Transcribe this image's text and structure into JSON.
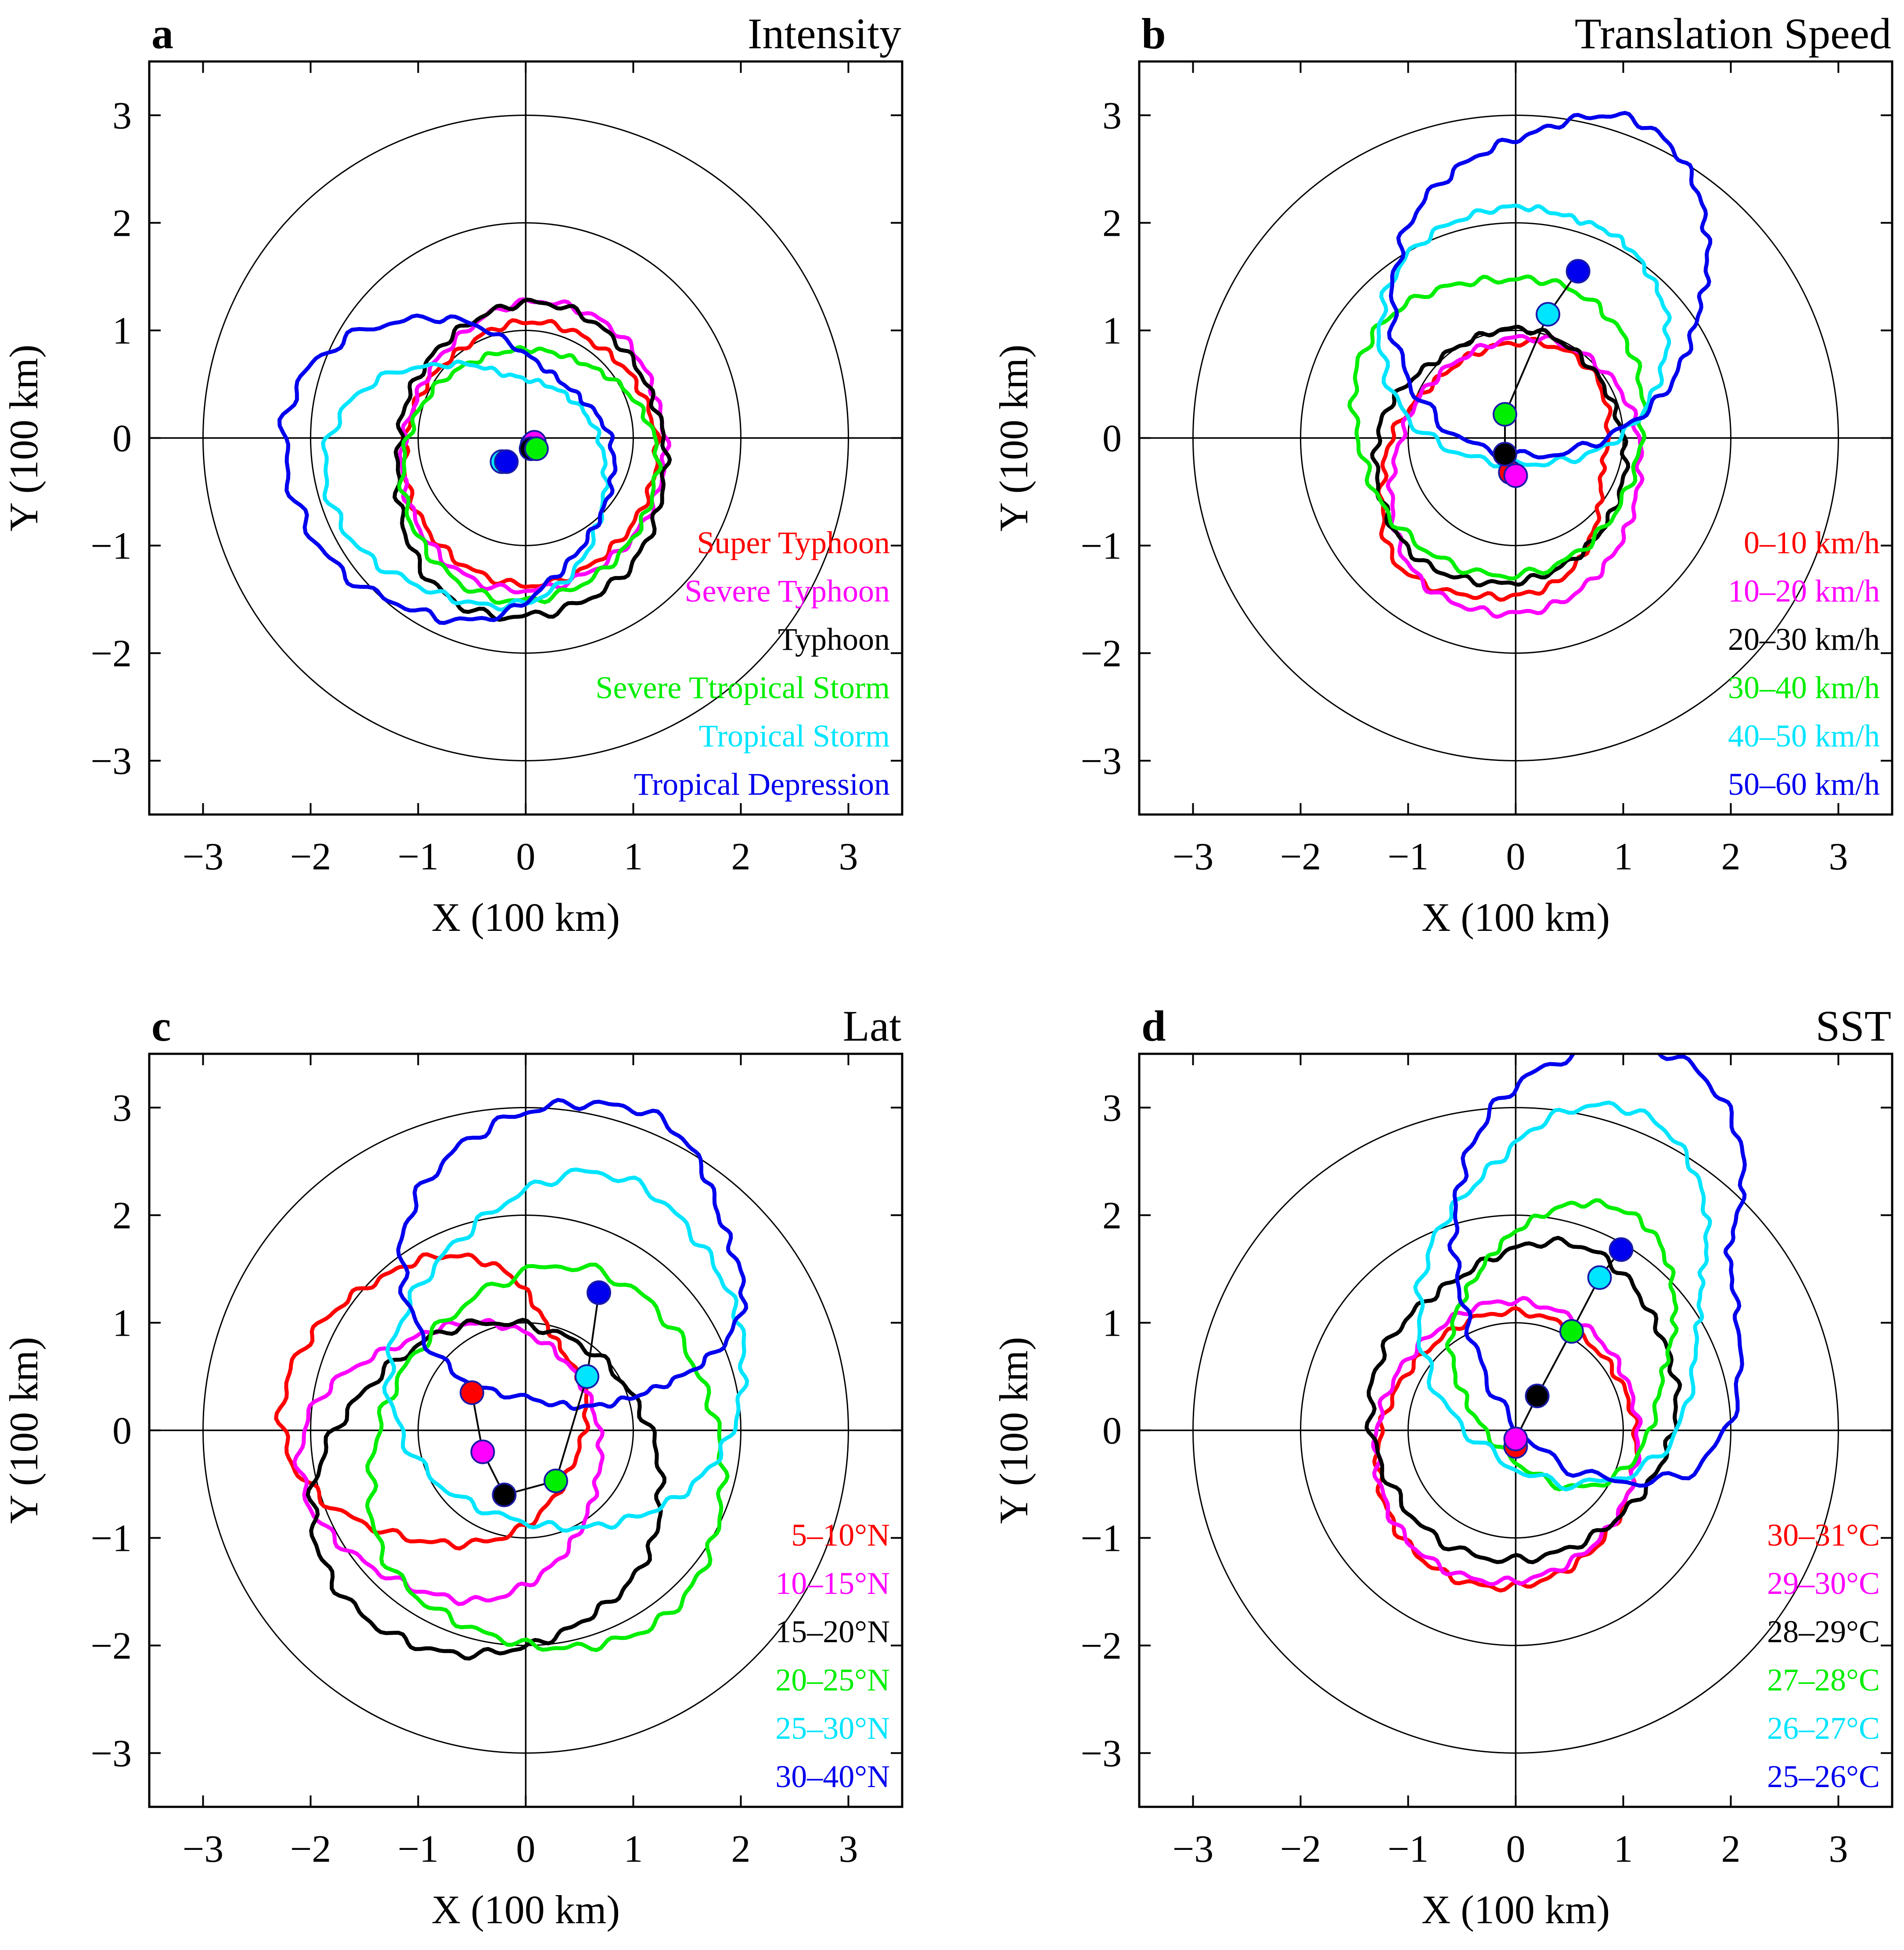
{
  "figure": {
    "x_label": "X (100 km)",
    "y_label": "Y (100 km)"
  },
  "chart_data": [
    {
      "type": "line",
      "letter": "a",
      "title": "Intensity",
      "xlim": [
        -3.5,
        3.5
      ],
      "ylim": [
        -3.5,
        3.5
      ],
      "xticks": [
        -3,
        -2,
        -1,
        0,
        1,
        2,
        3
      ],
      "yticks": [
        -3,
        -2,
        -1,
        0,
        1,
        2,
        3
      ],
      "tick_labels": [
        "−3",
        "−2",
        "−1",
        "0",
        "1",
        "2",
        "3"
      ],
      "range_circles": [
        1,
        2,
        3
      ],
      "xlabel": "X (100 km)",
      "ylabel": "Y (100 km)",
      "legend_position": "bottom-right",
      "series": [
        {
          "name": "Super Typhoon",
          "color": "#ff0000",
          "centroid": [
            0.06,
            -0.06
          ],
          "radii": [
            1.16,
            1.13,
            1.12,
            1.1,
            1.12,
            1.14,
            1.13,
            1.1,
            1.12,
            1.15,
            1.18,
            1.22,
            1.25,
            1.28,
            1.3,
            1.31,
            1.27,
            1.22,
            1.19,
            1.17
          ]
        },
        {
          "name": "Severe Typhoon",
          "color": "#ff00ff",
          "centroid": [
            0.08,
            -0.04
          ],
          "radii": [
            1.22,
            1.2,
            1.24,
            1.28,
            1.3,
            1.31,
            1.27,
            1.2,
            1.18,
            1.17,
            1.22,
            1.27,
            1.33,
            1.38,
            1.4,
            1.37,
            1.32,
            1.29,
            1.26,
            1.23
          ]
        },
        {
          "name": "Typhoon",
          "color": "#000000",
          "centroid": [
            0.05,
            -0.1
          ],
          "radii": [
            1.25,
            1.22,
            1.24,
            1.28,
            1.34,
            1.36,
            1.32,
            1.28,
            1.25,
            1.24,
            1.23,
            1.3,
            1.42,
            1.55,
            1.6,
            1.55,
            1.5,
            1.45,
            1.36,
            1.28
          ]
        },
        {
          "name": "Severe Ttropical Storm",
          "color": "#00ee00",
          "centroid": [
            0.1,
            -0.1
          ],
          "radii": [
            1.12,
            1.05,
            0.98,
            0.92,
            0.9,
            0.92,
            0.95,
            1.0,
            1.08,
            1.15,
            1.22,
            1.3,
            1.37,
            1.42,
            1.45,
            1.4,
            1.33,
            1.26,
            1.2,
            1.15
          ]
        },
        {
          "name": "Tropical Storm",
          "color": "#00e5ff",
          "centroid": [
            -0.22,
            -0.22
          ],
          "radii": [
            0.95,
            0.92,
            0.88,
            0.84,
            0.8,
            0.82,
            0.95,
            1.1,
            1.35,
            1.55,
            1.65,
            1.62,
            1.52,
            1.4,
            1.35,
            1.34,
            1.3,
            1.2,
            1.08,
            1.0
          ]
        },
        {
          "name": "Tropical Depression",
          "color": "#0000ee",
          "centroid": [
            -0.18,
            -0.22
          ],
          "radii": [
            1.0,
            0.98,
            0.92,
            0.9,
            0.96,
            1.12,
            1.38,
            1.62,
            1.9,
            2.08,
            2.05,
            1.95,
            1.82,
            1.65,
            1.55,
            1.4,
            1.2,
            1.08,
            1.02,
            1.0
          ]
        }
      ],
      "connector": false
    },
    {
      "type": "line",
      "letter": "b",
      "title": "Translation Speed",
      "xlim": [
        -3.5,
        3.5
      ],
      "ylim": [
        -3.5,
        3.5
      ],
      "xticks": [
        -3,
        -2,
        -1,
        0,
        1,
        2,
        3
      ],
      "yticks": [
        -3,
        -2,
        -1,
        0,
        1,
        2,
        3
      ],
      "tick_labels": [
        "−3",
        "−2",
        "−1",
        "0",
        "1",
        "2",
        "3"
      ],
      "range_circles": [
        1,
        2,
        3
      ],
      "xlabel": "X (100 km)",
      "ylabel": "Y (100 km)",
      "legend_position": "bottom-right",
      "series": [
        {
          "name": "0–10 km/h",
          "color": "#ff0000",
          "centroid": [
            -0.05,
            -0.32
          ],
          "radii": [
            0.85,
            0.95,
            1.1,
            1.22,
            1.24,
            1.2,
            1.15,
            1.1,
            1.1,
            1.15,
            1.18,
            1.25,
            1.35,
            1.3,
            1.2,
            1.15,
            1.12,
            1.05,
            0.95,
            0.88
          ]
        },
        {
          "name": "10–20 km/h",
          "color": "#ff00ff",
          "centroid": [
            0.0,
            -0.35
          ],
          "radii": [
            1.15,
            1.2,
            1.25,
            1.28,
            1.3,
            1.28,
            1.22,
            1.18,
            1.15,
            1.12,
            1.15,
            1.2,
            1.28,
            1.32,
            1.3,
            1.28,
            1.25,
            1.2,
            1.16,
            1.14
          ]
        },
        {
          "name": "20–30 km/h",
          "color": "#000000",
          "centroid": [
            -0.1,
            -0.15
          ],
          "radii": [
            1.12,
            1.1,
            1.12,
            1.15,
            1.18,
            1.16,
            1.1,
            1.08,
            1.12,
            1.18,
            1.2,
            1.22,
            1.25,
            1.26,
            1.22,
            1.2,
            1.18,
            1.16,
            1.14,
            1.13
          ]
        },
        {
          "name": "30–40 km/h",
          "color": "#00ee00",
          "centroid": [
            -0.1,
            0.22
          ],
          "radii": [
            1.28,
            1.3,
            1.32,
            1.32,
            1.3,
            1.25,
            1.28,
            1.35,
            1.42,
            1.44,
            1.4,
            1.38,
            1.42,
            1.45,
            1.48,
            1.5,
            1.48,
            1.42,
            1.35,
            1.3
          ]
        },
        {
          "name": "40–50 km/h",
          "color": "#00e5ff",
          "centroid": [
            0.3,
            1.15
          ],
          "radii": [
            1.1,
            1.02,
            0.98,
            0.95,
            0.92,
            0.96,
            1.05,
            1.15,
            1.3,
            1.45,
            1.55,
            1.6,
            1.62,
            1.55,
            1.45,
            1.38,
            1.35,
            1.3,
            1.22,
            1.15
          ]
        },
        {
          "name": "50–60 km/h",
          "color": "#0000ee",
          "centroid": [
            0.58,
            1.55
          ],
          "radii": [
            1.2,
            1.25,
            1.35,
            1.45,
            1.5,
            1.42,
            1.35,
            1.4,
            1.5,
            1.62,
            1.7,
            1.8,
            1.88,
            1.9,
            1.8,
            1.65,
            1.5,
            1.38,
            1.25,
            1.18
          ]
        }
      ],
      "connector": true
    },
    {
      "type": "line",
      "letter": "c",
      "title": "Lat",
      "xlim": [
        -3.5,
        3.5
      ],
      "ylim": [
        -3.5,
        3.5
      ],
      "xticks": [
        -3,
        -2,
        -1,
        0,
        1,
        2,
        3
      ],
      "yticks": [
        -3,
        -2,
        -1,
        0,
        1,
        2,
        3
      ],
      "tick_labels": [
        "−3",
        "−2",
        "−1",
        "0",
        "1",
        "2",
        "3"
      ],
      "range_circles": [
        1,
        2,
        3
      ],
      "xlabel": "X (100 km)",
      "ylabel": "Y (100 km)",
      "legend_position": "bottom-right",
      "series": [
        {
          "name": "5–10°N",
          "color": "#ff0000",
          "centroid": [
            -0.5,
            0.35
          ],
          "radii": [
            1.05,
            0.95,
            0.92,
            1.0,
            1.15,
            1.25,
            1.32,
            1.35,
            1.45,
            1.6,
            1.75,
            1.8,
            1.7,
            1.55,
            1.45,
            1.4,
            1.35,
            1.25,
            1.15,
            1.1
          ]
        },
        {
          "name": "10–15°N",
          "color": "#ff00ff",
          "centroid": [
            -0.4,
            -0.2
          ],
          "radii": [
            1.1,
            1.1,
            1.12,
            1.15,
            1.18,
            1.2,
            1.22,
            1.25,
            1.4,
            1.6,
            1.7,
            1.68,
            1.55,
            1.45,
            1.4,
            1.38,
            1.3,
            1.22,
            1.15,
            1.1
          ]
        },
        {
          "name": "15–20°N",
          "color": "#000000",
          "centroid": [
            -0.2,
            -0.6
          ],
          "radii": [
            1.45,
            1.48,
            1.5,
            1.55,
            1.58,
            1.6,
            1.62,
            1.6,
            1.62,
            1.7,
            1.78,
            1.8,
            1.75,
            1.65,
            1.55,
            1.45,
            1.4,
            1.38,
            1.42,
            1.45
          ]
        },
        {
          "name": "20–25°N",
          "color": "#00ee00",
          "centroid": [
            0.28,
            -0.47
          ],
          "radii": [
            1.55,
            1.58,
            1.65,
            1.8,
            1.95,
            2.0,
            1.9,
            1.8,
            1.75,
            1.72,
            1.72,
            1.75,
            1.7,
            1.6,
            1.55,
            1.55,
            1.58,
            1.62,
            1.6,
            1.56
          ]
        },
        {
          "name": "25–30°N",
          "color": "#00e5ff",
          "centroid": [
            0.57,
            0.5
          ],
          "radii": [
            1.45,
            1.5,
            1.55,
            1.65,
            1.82,
            1.9,
            1.82,
            1.75,
            1.75,
            1.8,
            1.85,
            1.8,
            1.7,
            1.55,
            1.45,
            1.4,
            1.38,
            1.4,
            1.42,
            1.44
          ]
        },
        {
          "name": "30–40°N",
          "color": "#0000ee",
          "centroid": [
            0.68,
            1.28
          ],
          "radii": [
            1.35,
            1.3,
            1.35,
            1.55,
            1.72,
            1.75,
            1.8,
            1.85,
            1.9,
            1.9,
            1.8,
            1.65,
            1.45,
            1.2,
            1.1,
            1.05,
            1.02,
            1.05,
            1.15,
            1.28
          ]
        }
      ],
      "connector": true
    },
    {
      "type": "line",
      "letter": "d",
      "title": "SST",
      "xlim": [
        -3.5,
        3.5
      ],
      "ylim": [
        -3.5,
        3.5
      ],
      "xticks": [
        -3,
        -2,
        -1,
        0,
        1,
        2,
        3
      ],
      "yticks": [
        -3,
        -2,
        -1,
        0,
        1,
        2,
        3
      ],
      "tick_labels": [
        "−3",
        "−2",
        "−1",
        "0",
        "1",
        "2",
        "3"
      ],
      "range_circles": [
        1,
        2,
        3
      ],
      "xlabel": "X (100 km)",
      "ylabel": "Y (100 km)",
      "legend_position": "bottom-right",
      "series": [
        {
          "name": "30–31°C",
          "color": "#ff0000",
          "centroid": [
            0.0,
            -0.15
          ],
          "radii": [
            1.12,
            1.13,
            1.15,
            1.18,
            1.22,
            1.25,
            1.25,
            1.22,
            1.22,
            1.24,
            1.28,
            1.32,
            1.35,
            1.36,
            1.34,
            1.3,
            1.25,
            1.2,
            1.16,
            1.13
          ]
        },
        {
          "name": "29–30°C",
          "color": "#ff00ff",
          "centroid": [
            0.0,
            -0.08
          ],
          "radii": [
            1.14,
            1.15,
            1.18,
            1.22,
            1.25,
            1.28,
            1.28,
            1.25,
            1.25,
            1.27,
            1.3,
            1.33,
            1.37,
            1.38,
            1.36,
            1.32,
            1.27,
            1.22,
            1.18,
            1.15
          ]
        },
        {
          "name": "28–29°C",
          "color": "#000000",
          "centroid": [
            0.2,
            0.32
          ],
          "radii": [
            1.3,
            1.28,
            1.3,
            1.38,
            1.45,
            1.42,
            1.35,
            1.32,
            1.38,
            1.48,
            1.55,
            1.58,
            1.6,
            1.62,
            1.58,
            1.5,
            1.42,
            1.35,
            1.32,
            1.3
          ]
        },
        {
          "name": "27–28°C",
          "color": "#00ee00",
          "centroid": [
            0.52,
            0.92
          ],
          "radii": [
            0.95,
            1.0,
            1.1,
            1.2,
            1.22,
            1.18,
            1.1,
            1.05,
            1.02,
            1.05,
            1.12,
            1.15,
            1.18,
            1.25,
            1.35,
            1.45,
            1.4,
            1.2,
            1.0,
            0.92
          ]
        },
        {
          "name": "26–27°C",
          "color": "#00e5ff",
          "centroid": [
            0.78,
            1.42
          ],
          "radii": [
            0.95,
            1.05,
            1.2,
            1.38,
            1.55,
            1.6,
            1.55,
            1.45,
            1.45,
            1.55,
            1.65,
            1.75,
            1.85,
            1.9,
            1.95,
            1.9,
            1.75,
            1.4,
            1.1,
            0.98
          ]
        },
        {
          "name": "25–26°C",
          "color": "#0000ee",
          "centroid": [
            0.98,
            1.68
          ],
          "radii": [
            1.0,
            1.15,
            1.4,
            1.65,
            1.85,
            1.9,
            1.85,
            1.8,
            1.7,
            1.6,
            1.55,
            1.55,
            1.65,
            1.85,
            2.05,
            2.15,
            2.15,
            1.8,
            1.35,
            1.1
          ]
        }
      ],
      "connector": true
    }
  ]
}
